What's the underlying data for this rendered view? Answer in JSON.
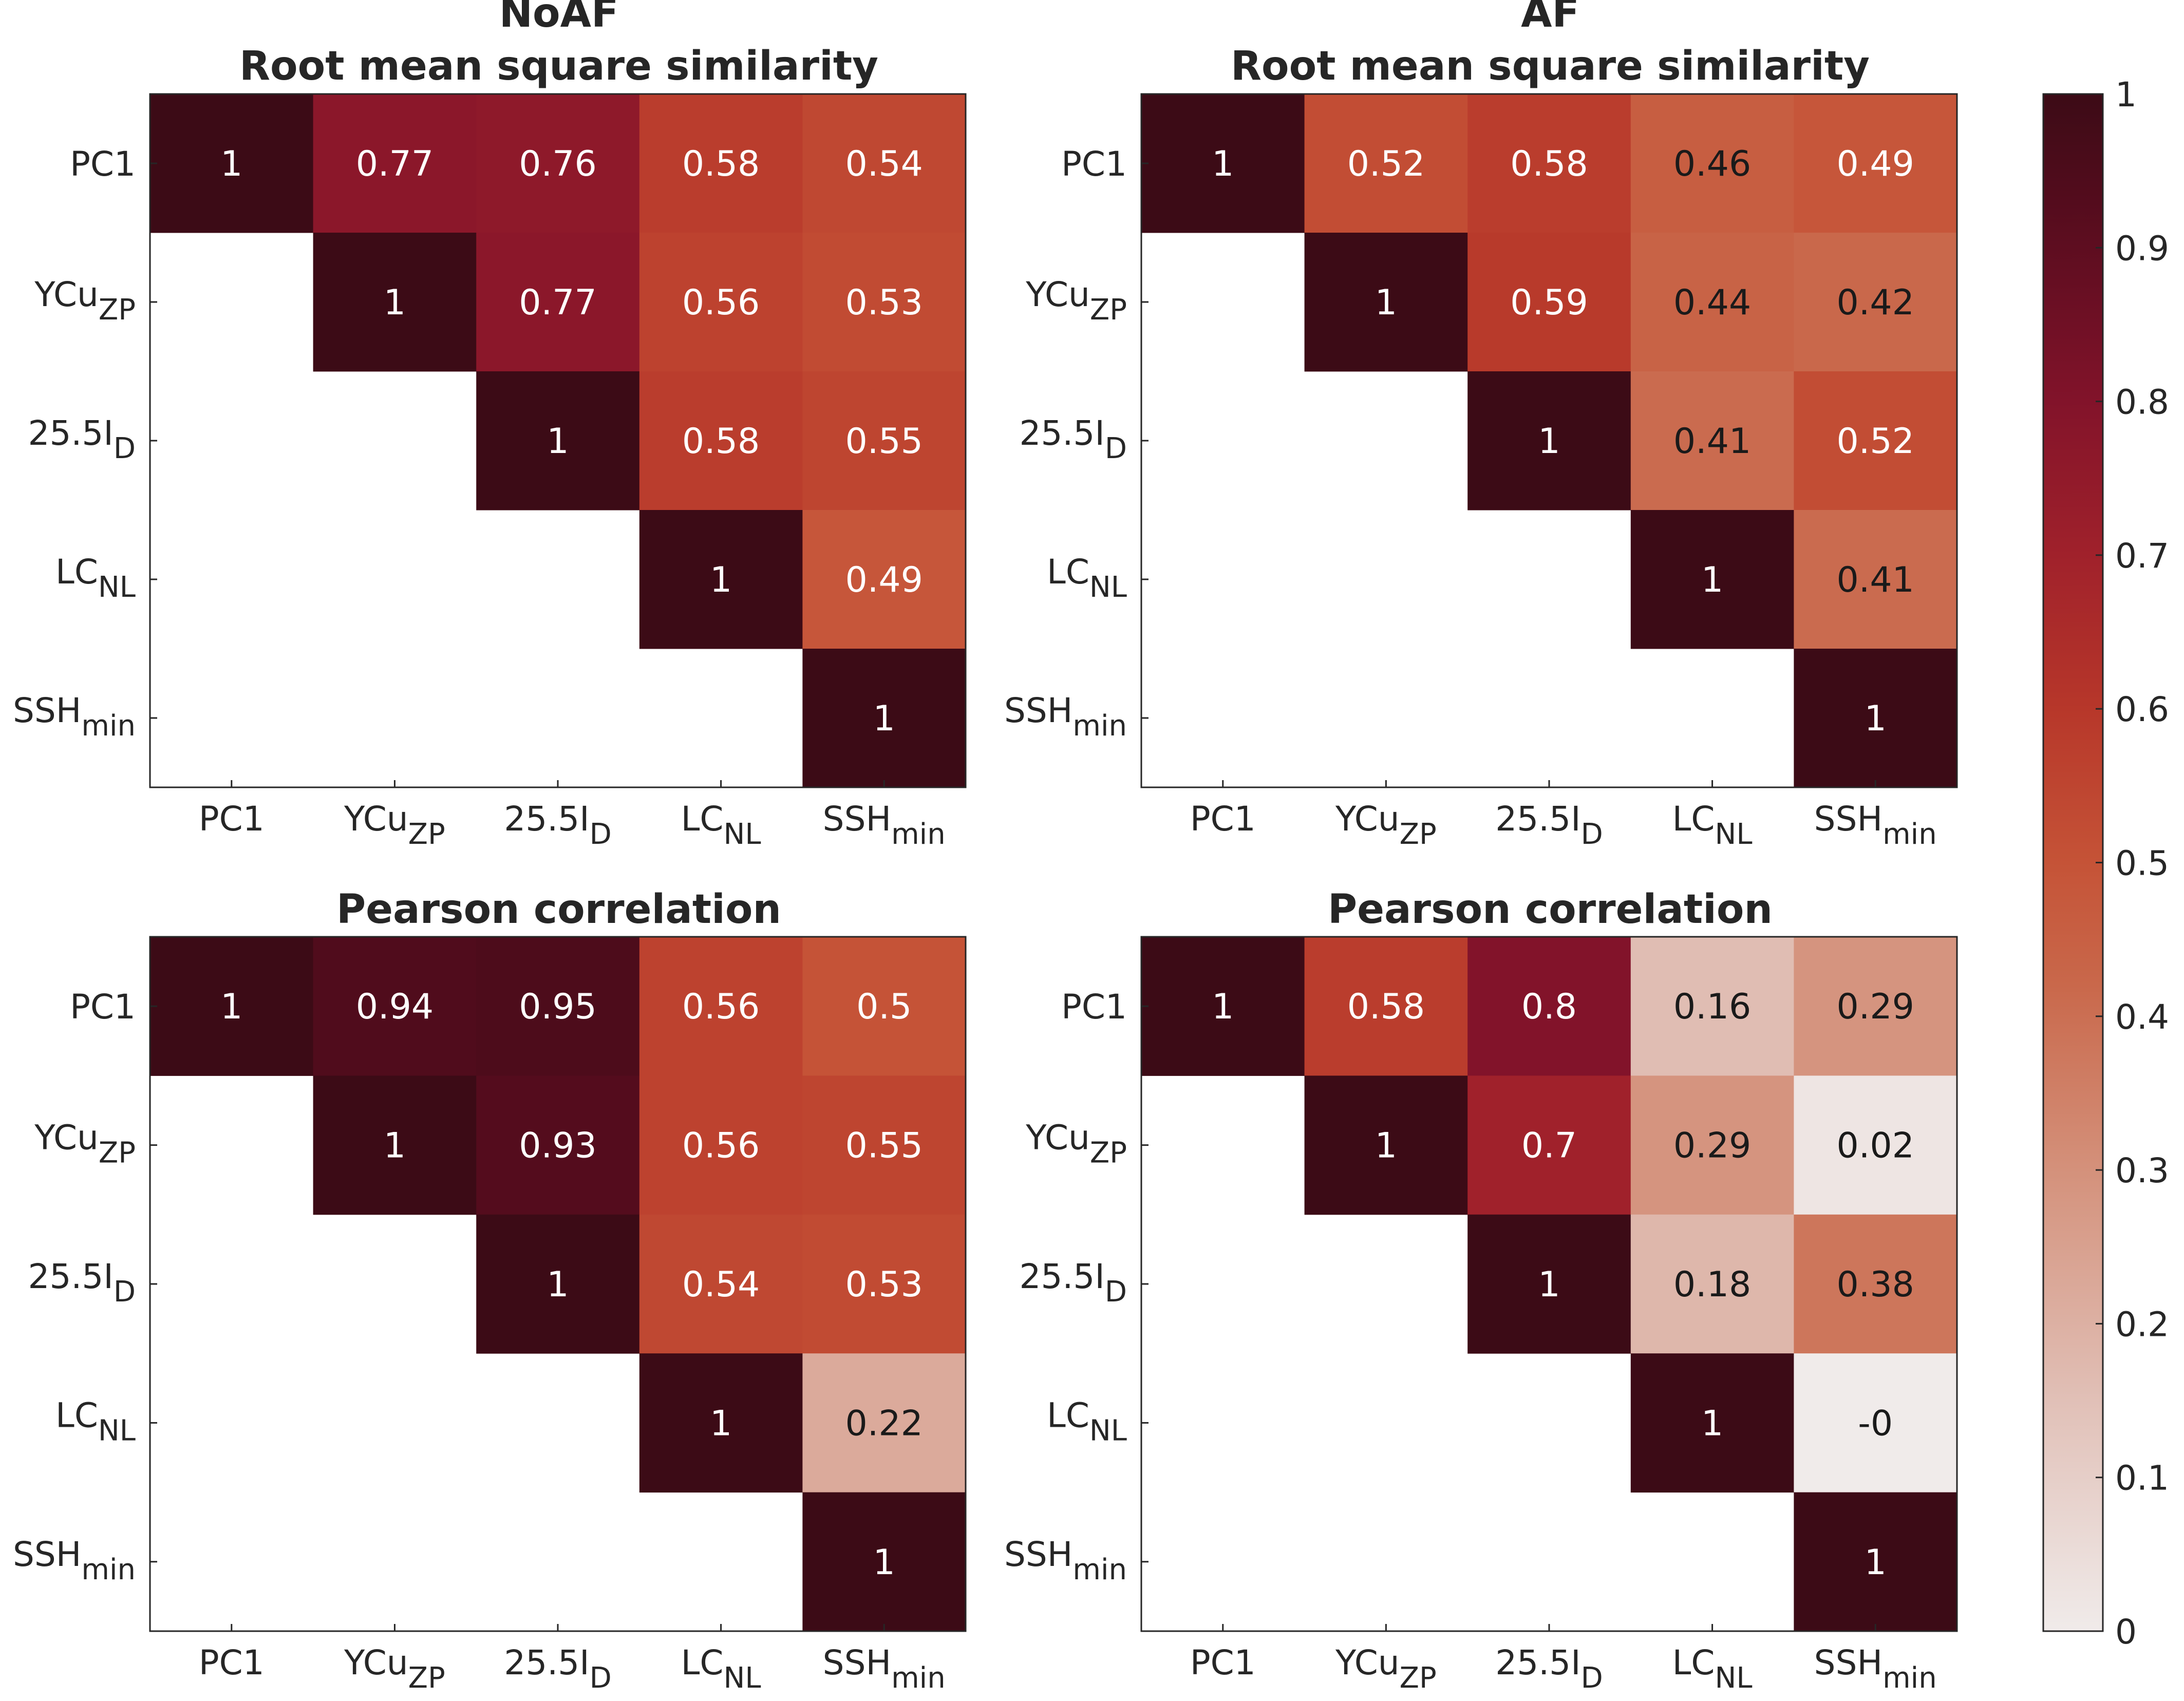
{
  "figure_titles": {
    "noaf": "NoAF",
    "af": "AF"
  },
  "chart_data": [
    {
      "type": "heatmap",
      "panel": "NoAF",
      "title": "Root mean square similarity",
      "row_labels": [
        {
          "base": "PC1",
          "sub": ""
        },
        {
          "base": "YCu",
          "sub": "ZP"
        },
        {
          "base": "25.5I",
          "sub": "D"
        },
        {
          "base": "LC",
          "sub": "NL"
        },
        {
          "base": "SSH",
          "sub": "min"
        }
      ],
      "col_labels": [
        {
          "base": "PC1",
          "sub": ""
        },
        {
          "base": "YCu",
          "sub": "ZP"
        },
        {
          "base": "25.5I",
          "sub": "D"
        },
        {
          "base": "LC",
          "sub": "NL"
        },
        {
          "base": "SSH",
          "sub": "min"
        }
      ],
      "values": [
        [
          1,
          0.77,
          0.76,
          0.58,
          0.54
        ],
        [
          null,
          1,
          0.77,
          0.56,
          0.53
        ],
        [
          null,
          null,
          1,
          0.58,
          0.55
        ],
        [
          null,
          null,
          null,
          1,
          0.49
        ],
        [
          null,
          null,
          null,
          null,
          1
        ]
      ],
      "labels": [
        [
          "1",
          "0.77",
          "0.76",
          "0.58",
          "0.54"
        ],
        [
          "",
          "1",
          "0.77",
          "0.56",
          "0.53"
        ],
        [
          "",
          "",
          "1",
          "0.58",
          "0.55"
        ],
        [
          "",
          "",
          "",
          "1",
          "0.49"
        ],
        [
          "",
          "",
          "",
          "",
          "1"
        ]
      ]
    },
    {
      "type": "heatmap",
      "panel": "AF",
      "title": "Root mean square similarity",
      "row_labels": [
        {
          "base": "PC1",
          "sub": ""
        },
        {
          "base": "YCu",
          "sub": "ZP"
        },
        {
          "base": "25.5I",
          "sub": "D"
        },
        {
          "base": "LC",
          "sub": "NL"
        },
        {
          "base": "SSH",
          "sub": "min"
        }
      ],
      "col_labels": [
        {
          "base": "PC1",
          "sub": ""
        },
        {
          "base": "YCu",
          "sub": "ZP"
        },
        {
          "base": "25.5I",
          "sub": "D"
        },
        {
          "base": "LC",
          "sub": "NL"
        },
        {
          "base": "SSH",
          "sub": "min"
        }
      ],
      "values": [
        [
          1,
          0.52,
          0.58,
          0.46,
          0.49
        ],
        [
          null,
          1,
          0.59,
          0.44,
          0.42
        ],
        [
          null,
          null,
          1,
          0.41,
          0.52
        ],
        [
          null,
          null,
          null,
          1,
          0.41
        ],
        [
          null,
          null,
          null,
          null,
          1
        ]
      ],
      "labels": [
        [
          "1",
          "0.52",
          "0.58",
          "0.46",
          "0.49"
        ],
        [
          "",
          "1",
          "0.59",
          "0.44",
          "0.42"
        ],
        [
          "",
          "",
          "1",
          "0.41",
          "0.52"
        ],
        [
          "",
          "",
          "",
          "1",
          "0.41"
        ],
        [
          "",
          "",
          "",
          "",
          "1"
        ]
      ]
    },
    {
      "type": "heatmap",
      "panel": "NoAF",
      "title": "Pearson correlation",
      "row_labels": [
        {
          "base": "PC1",
          "sub": ""
        },
        {
          "base": "YCu",
          "sub": "ZP"
        },
        {
          "base": "25.5I",
          "sub": "D"
        },
        {
          "base": "LC",
          "sub": "NL"
        },
        {
          "base": "SSH",
          "sub": "min"
        }
      ],
      "col_labels": [
        {
          "base": "PC1",
          "sub": ""
        },
        {
          "base": "YCu",
          "sub": "ZP"
        },
        {
          "base": "25.5I",
          "sub": "D"
        },
        {
          "base": "LC",
          "sub": "NL"
        },
        {
          "base": "SSH",
          "sub": "min"
        }
      ],
      "values": [
        [
          1,
          0.94,
          0.95,
          0.56,
          0.5
        ],
        [
          null,
          1,
          0.93,
          0.56,
          0.55
        ],
        [
          null,
          null,
          1,
          0.54,
          0.53
        ],
        [
          null,
          null,
          null,
          1,
          0.22
        ],
        [
          null,
          null,
          null,
          null,
          1
        ]
      ],
      "labels": [
        [
          "1",
          "0.94",
          "0.95",
          "0.56",
          "0.5"
        ],
        [
          "",
          "1",
          "0.93",
          "0.56",
          "0.55"
        ],
        [
          "",
          "",
          "1",
          "0.54",
          "0.53"
        ],
        [
          "",
          "",
          "",
          "1",
          "0.22"
        ],
        [
          "",
          "",
          "",
          "",
          "1"
        ]
      ]
    },
    {
      "type": "heatmap",
      "panel": "AF",
      "title": "Pearson correlation",
      "row_labels": [
        {
          "base": "PC1",
          "sub": ""
        },
        {
          "base": "YCu",
          "sub": "ZP"
        },
        {
          "base": "25.5I",
          "sub": "D"
        },
        {
          "base": "LC",
          "sub": "NL"
        },
        {
          "base": "SSH",
          "sub": "min"
        }
      ],
      "col_labels": [
        {
          "base": "PC1",
          "sub": ""
        },
        {
          "base": "YCu",
          "sub": "ZP"
        },
        {
          "base": "25.5I",
          "sub": "D"
        },
        {
          "base": "LC",
          "sub": "NL"
        },
        {
          "base": "SSH",
          "sub": "min"
        }
      ],
      "values": [
        [
          1,
          0.58,
          0.8,
          0.16,
          0.29
        ],
        [
          null,
          1,
          0.7,
          0.29,
          0.02
        ],
        [
          null,
          null,
          1,
          0.18,
          0.38
        ],
        [
          null,
          null,
          null,
          1,
          -0.0
        ],
        [
          null,
          null,
          null,
          null,
          1
        ]
      ],
      "labels": [
        [
          "1",
          "0.58",
          "0.8",
          "0.16",
          "0.29"
        ],
        [
          "",
          "1",
          "0.7",
          "0.29",
          "0.02"
        ],
        [
          "",
          "",
          "1",
          "0.18",
          "0.38"
        ],
        [
          "",
          "",
          "",
          "1",
          "-0"
        ],
        [
          "",
          "",
          "",
          "",
          "1"
        ]
      ]
    }
  ],
  "colorbar": {
    "range": [
      0,
      1
    ],
    "tick_values": [
      0,
      0.1,
      0.2,
      0.3,
      0.4,
      0.5,
      0.6,
      0.7,
      0.8,
      0.9,
      1
    ],
    "tick_labels": [
      "0",
      "0.1",
      "0.2",
      "0.3",
      "0.4",
      "0.5",
      "0.6",
      "0.7",
      "0.8",
      "0.9",
      "1"
    ],
    "colormap": [
      {
        "v": 0.0,
        "color": "#f0ebea"
      },
      {
        "v": 0.15,
        "color": "#e1c0b7"
      },
      {
        "v": 0.3,
        "color": "#d4917b"
      },
      {
        "v": 0.42,
        "color": "#c9684b"
      },
      {
        "v": 0.5,
        "color": "#c55337"
      },
      {
        "v": 0.6,
        "color": "#b7372a"
      },
      {
        "v": 0.7,
        "color": "#a0212b"
      },
      {
        "v": 0.8,
        "color": "#82132a"
      },
      {
        "v": 0.9,
        "color": "#5e0d20"
      },
      {
        "v": 1.0,
        "color": "#3c0b16"
      }
    ]
  }
}
